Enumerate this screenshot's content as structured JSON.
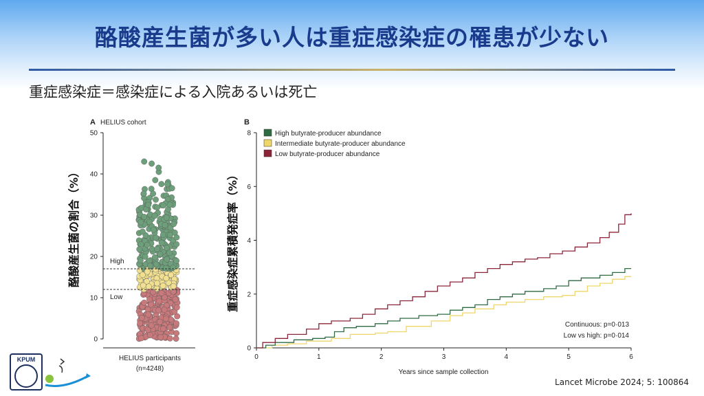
{
  "title": "酪酸産生菌が多い人は重症感染症の罹患が少ない",
  "subtitle": "重症感染症＝感染症による入院あるいは死亡",
  "citation": "Lancet Microbe 2024; 5: 100864",
  "logo_text": "KPUM",
  "colors": {
    "title": "#1a3a8c",
    "high": "#2e6b43",
    "intermediate": "#efd66a",
    "low": "#8b2438",
    "dot_high": "#6e9f7b",
    "dot_mid": "#f1e08f",
    "dot_low": "#c8797b"
  },
  "chart_data": [
    {
      "type": "scatter",
      "panel_label": "A",
      "panel_title": "HELIUS cohort",
      "ylabel": "酪酸産生菌の割合（%）",
      "xlabel": "HELIUS participants",
      "xlabel2": "(n=4248)",
      "ylim": [
        0,
        50
      ],
      "yticks": [
        0,
        10,
        20,
        30,
        40,
        50
      ],
      "thresholds": [
        {
          "label": "High",
          "value": 17
        },
        {
          "label": "Low",
          "value": 12
        }
      ],
      "n": 4248,
      "groups": [
        {
          "name": "Low",
          "range": [
            0,
            12
          ]
        },
        {
          "name": "Intermediate",
          "range": [
            12,
            17
          ]
        },
        {
          "name": "High",
          "range": [
            17,
            43
          ]
        }
      ]
    },
    {
      "type": "line",
      "panel_label": "B",
      "ylabel": "重症感染症累積発症率（%）",
      "xlabel": "Years since sample collection",
      "xlim": [
        0,
        6
      ],
      "ylim": [
        0,
        8
      ],
      "xticks": [
        0,
        1,
        2,
        3,
        4,
        5,
        6
      ],
      "yticks": [
        0,
        2,
        4,
        6,
        8
      ],
      "annotations": [
        "Continuous: p=0·013",
        "Low vs high: p=0·014"
      ],
      "legend_position": "top-left",
      "series": [
        {
          "name": "High butyrate-producer abundance",
          "color": "#2e6b43",
          "x": [
            0,
            0.15,
            0.3,
            0.6,
            0.9,
            1.1,
            1.25,
            1.4,
            1.6,
            1.9,
            2.1,
            2.3,
            2.6,
            2.9,
            3.1,
            3.3,
            3.5,
            3.7,
            3.9,
            4.1,
            4.3,
            4.6,
            4.8,
            5.0,
            5.2,
            5.5,
            5.7,
            5.9,
            6.0
          ],
          "y": [
            0,
            0.1,
            0.2,
            0.3,
            0.35,
            0.4,
            0.6,
            0.75,
            0.8,
            0.9,
            1.0,
            1.1,
            1.2,
            1.25,
            1.4,
            1.5,
            1.6,
            1.8,
            1.9,
            2.0,
            2.1,
            2.2,
            2.3,
            2.5,
            2.6,
            2.7,
            2.8,
            2.95,
            2.95
          ]
        },
        {
          "name": "Intermediate butyrate-producer abundance",
          "color": "#efd66a",
          "x": [
            0,
            0.25,
            0.5,
            0.8,
            1.2,
            1.5,
            1.9,
            2.1,
            2.4,
            2.8,
            3.1,
            3.3,
            3.5,
            3.8,
            4.0,
            4.3,
            4.6,
            4.9,
            5.1,
            5.3,
            5.5,
            5.7,
            5.9,
            6.0
          ],
          "y": [
            0,
            0.1,
            0.15,
            0.25,
            0.35,
            0.5,
            0.55,
            0.6,
            0.8,
            1.0,
            1.2,
            1.3,
            1.45,
            1.6,
            1.7,
            1.8,
            1.9,
            1.95,
            2.1,
            2.3,
            2.4,
            2.55,
            2.65,
            2.65
          ]
        },
        {
          "name": "Low butyrate-producer abundance",
          "color": "#8b2438",
          "x": [
            0,
            0.1,
            0.3,
            0.5,
            0.8,
            1.0,
            1.2,
            1.5,
            1.7,
            1.9,
            2.1,
            2.3,
            2.5,
            2.7,
            2.9,
            3.1,
            3.3,
            3.5,
            3.7,
            3.9,
            4.1,
            4.3,
            4.5,
            4.7,
            4.9,
            5.1,
            5.3,
            5.5,
            5.65,
            5.8,
            5.9,
            6.0
          ],
          "y": [
            0,
            0.2,
            0.35,
            0.5,
            0.7,
            0.9,
            1.0,
            1.1,
            1.25,
            1.45,
            1.6,
            1.75,
            1.9,
            2.1,
            2.3,
            2.45,
            2.6,
            2.8,
            2.95,
            3.1,
            3.2,
            3.3,
            3.35,
            3.5,
            3.6,
            3.75,
            3.9,
            4.1,
            4.3,
            4.6,
            4.95,
            5.0
          ]
        }
      ]
    }
  ]
}
